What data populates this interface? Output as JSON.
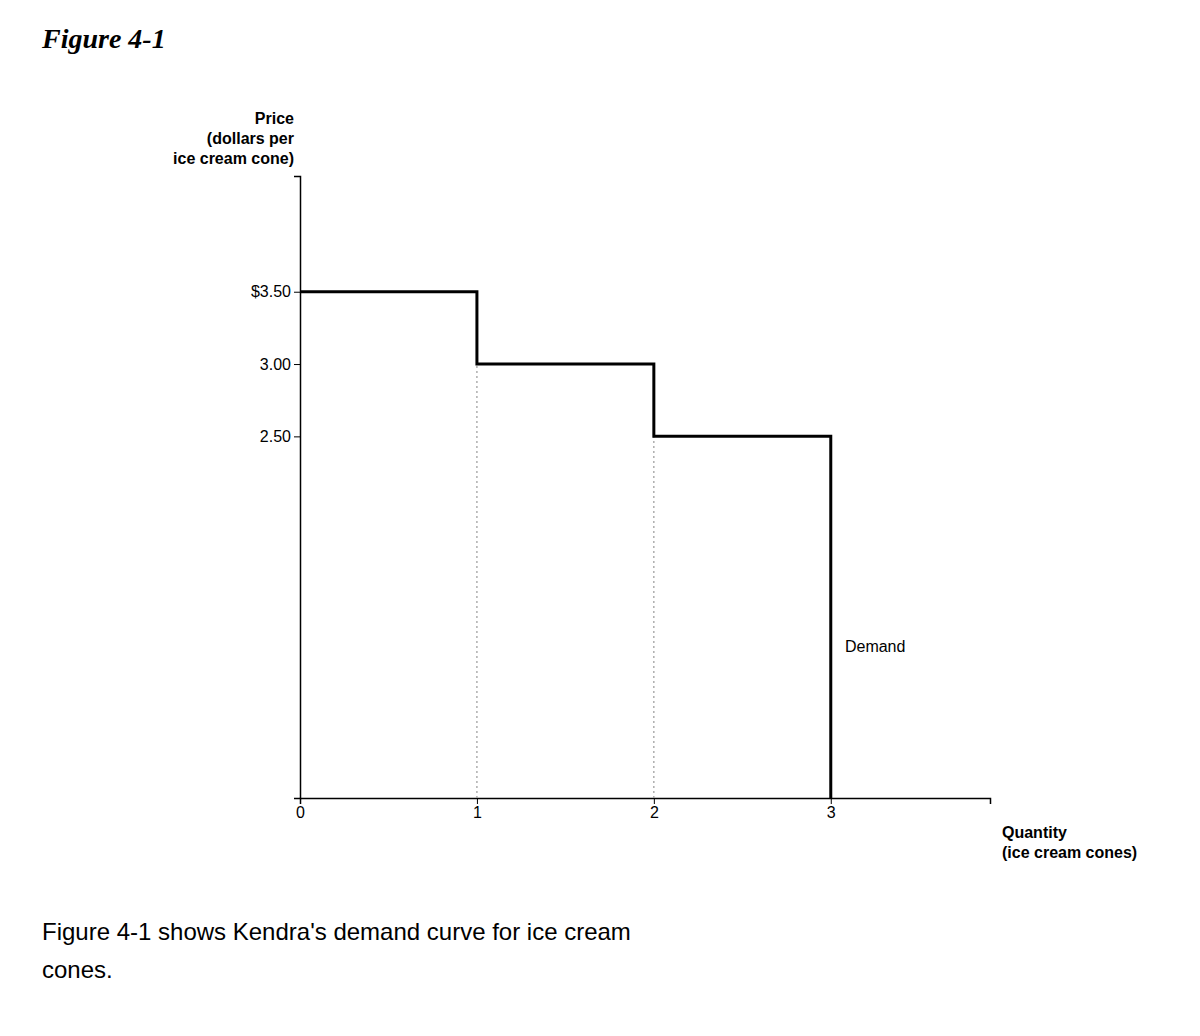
{
  "chart_data": {
    "type": "line",
    "title": "Figure 4-1",
    "y_label": "Price\n(dollars per\nice cream cone)",
    "x_label": "Quantity\n(ice cream cones)",
    "caption": "Figure 4-1 shows Kendra's demand curve for ice cream\ncones.",
    "annotations": [
      {
        "text": "Demand",
        "x": 3.08,
        "y": 1.05
      }
    ],
    "series": [
      {
        "x": [
          0,
          1,
          1,
          2,
          2,
          3,
          3
        ],
        "values": [
          3.5,
          3.5,
          3.0,
          3.0,
          2.5,
          2.5,
          0
        ],
        "color": "#000000",
        "line_style": "solid"
      },
      {
        "x": [
          1,
          1
        ],
        "values": [
          0,
          3.0
        ],
        "color": "#999999",
        "line_style": "dotted"
      },
      {
        "x": [
          2,
          2
        ],
        "values": [
          0,
          2.5
        ],
        "color": "#999999",
        "line_style": "dotted"
      }
    ],
    "xlim": [
      0,
      3.9
    ],
    "ylim": [
      0,
      4.3
    ],
    "xticks": [
      0,
      1,
      2,
      3
    ],
    "yticks": [
      {
        "value": 2.5,
        "label": "2.50"
      },
      {
        "value": 3.0,
        "label": "3.00"
      },
      {
        "value": 3.5,
        "label": "$3.50"
      }
    ],
    "grid": false
  }
}
